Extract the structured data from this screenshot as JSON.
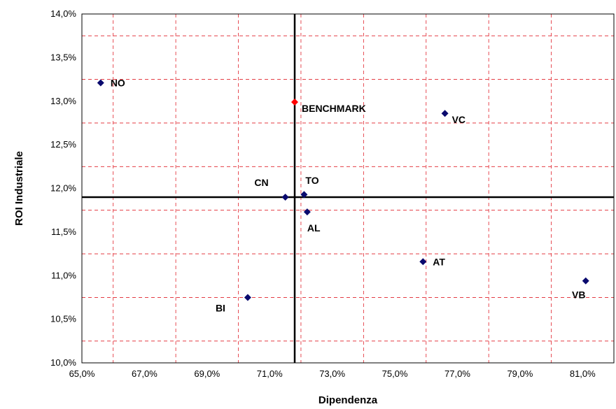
{
  "chart_data": {
    "type": "scatter",
    "xlabel": "Dipendenza",
    "ylabel": "ROI Industriale",
    "xlim": [
      65.0,
      82.0
    ],
    "ylim": [
      10.0,
      14.0
    ],
    "x_ticks": [
      "65,0%",
      "67,0%",
      "69,0%",
      "71,0%",
      "73,0%",
      "75,0%",
      "77,0%",
      "79,0%",
      "81,0%"
    ],
    "y_ticks": [
      "10,0%",
      "10,5%",
      "11,0%",
      "11,5%",
      "12,0%",
      "12,5%",
      "13,0%",
      "13,5%",
      "14,0%"
    ],
    "grid": true,
    "grid_color": "#e0202a",
    "point_color": "#0a0a6e",
    "benchmark_color": "#ff0000",
    "reference_lines": {
      "x": 71.8,
      "y": 11.9
    },
    "points": [
      {
        "label": "NO",
        "x": 65.6,
        "y": 13.21,
        "label_pos": "right"
      },
      {
        "label": "BENCHMARK",
        "x": 71.8,
        "y": 12.99,
        "label_pos": "right-below",
        "highlight": true
      },
      {
        "label": "VC",
        "x": 76.6,
        "y": 12.86,
        "label_pos": "right-below"
      },
      {
        "label": "CN",
        "x": 71.5,
        "y": 11.9,
        "label_pos": "left-above"
      },
      {
        "label": "TO",
        "x": 72.1,
        "y": 11.93,
        "label_pos": "above"
      },
      {
        "label": "AL",
        "x": 72.2,
        "y": 11.73,
        "label_pos": "below"
      },
      {
        "label": "AT",
        "x": 75.9,
        "y": 11.16,
        "label_pos": "right"
      },
      {
        "label": "BI",
        "x": 70.3,
        "y": 10.75,
        "label_pos": "left-below"
      },
      {
        "label": "VB",
        "x": 81.1,
        "y": 10.94,
        "label_pos": "below-left"
      }
    ]
  }
}
